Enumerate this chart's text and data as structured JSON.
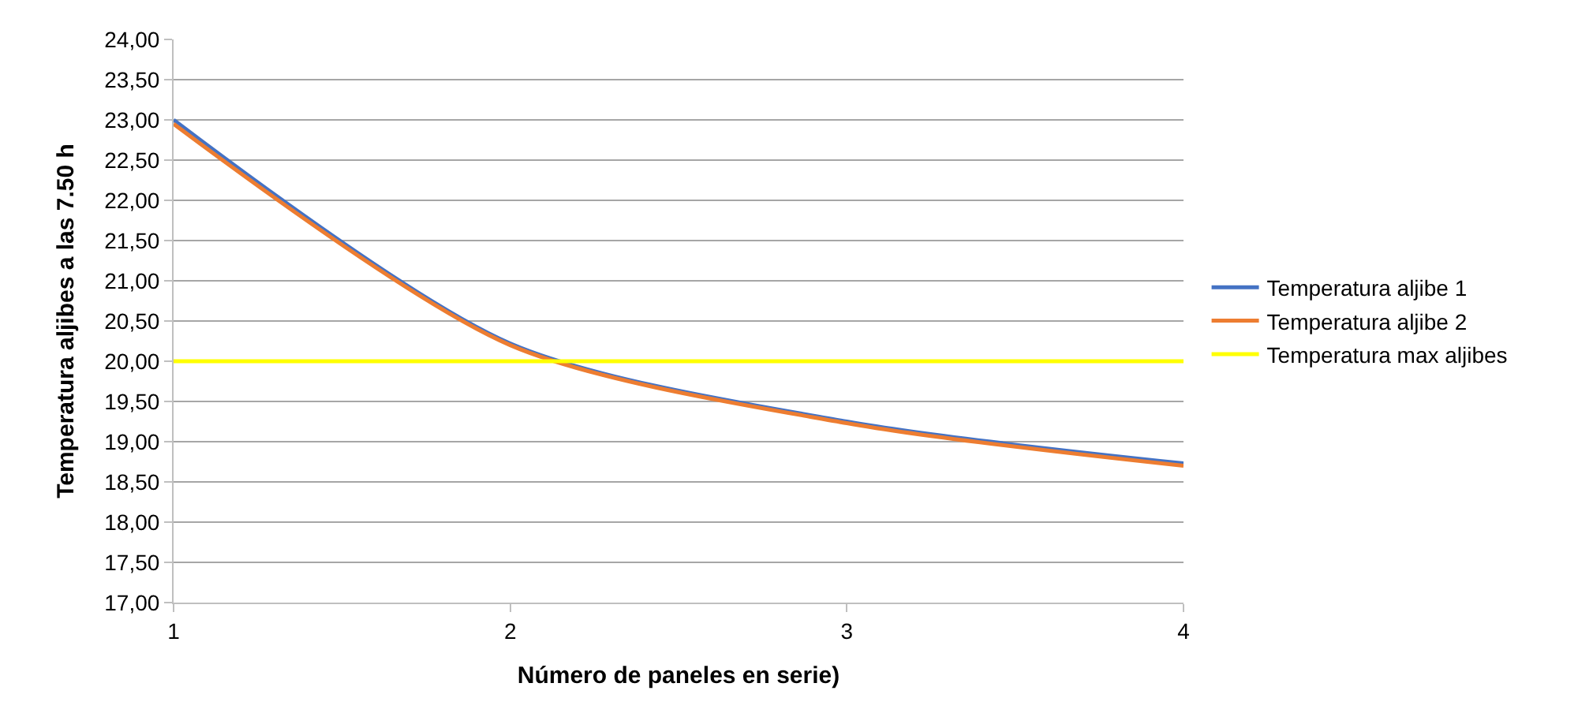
{
  "chart_data": {
    "type": "line",
    "xlabel": "Número de paneles en serie)",
    "ylabel": "Temperatura aljibes a las 7.50 h",
    "x": [
      1,
      2,
      3,
      4
    ],
    "series": [
      {
        "name": "Temperatura aljibe 1",
        "color": "#4472c4",
        "values": [
          23.0,
          20.22,
          19.25,
          18.73
        ]
      },
      {
        "name": "Temperatura aljibe 2",
        "color": "#ed7d31",
        "values": [
          22.95,
          20.2,
          19.23,
          18.7
        ]
      },
      {
        "name": "Temperatura max aljibes",
        "color": "#ffff00",
        "values": [
          20.0,
          20.0,
          20.0,
          20.0
        ]
      }
    ],
    "xlim": [
      1,
      4
    ],
    "xticks": [
      1,
      2,
      3,
      4
    ],
    "ylim": [
      17,
      24
    ],
    "yticks": [
      {
        "value": 17,
        "label": "17,00"
      },
      {
        "value": 17.5,
        "label": "17,50"
      },
      {
        "value": 18,
        "label": "18,00"
      },
      {
        "value": 18.5,
        "label": "18,50"
      },
      {
        "value": 19,
        "label": "19,00"
      },
      {
        "value": 19.5,
        "label": "19,50"
      },
      {
        "value": 20,
        "label": "20,00"
      },
      {
        "value": 20.5,
        "label": "20,50"
      },
      {
        "value": 21,
        "label": "21,00"
      },
      {
        "value": 21.5,
        "label": "21,50"
      },
      {
        "value": 22,
        "label": "22,00"
      },
      {
        "value": 22.5,
        "label": "22,50"
      },
      {
        "value": 23,
        "label": "23,00"
      },
      {
        "value": 23.5,
        "label": "23,50"
      },
      {
        "value": 24,
        "label": "24,00"
      }
    ],
    "grid": "y",
    "legend": "right",
    "marker": "none",
    "line_style": "solid"
  }
}
